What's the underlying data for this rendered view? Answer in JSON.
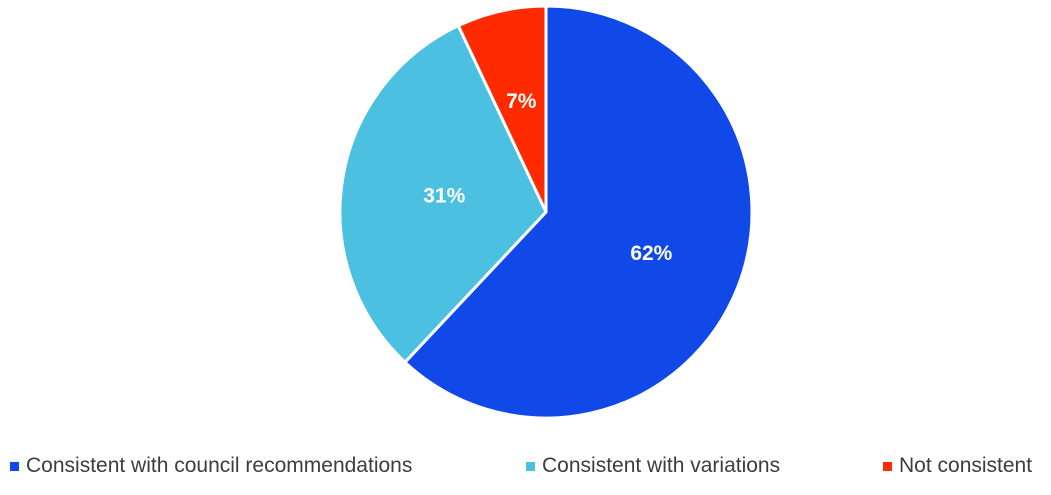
{
  "chart_data": {
    "type": "pie",
    "title": "",
    "categories": [
      "Consistent with council recommendations",
      "Consistent with variations",
      "Not consistent"
    ],
    "values": [
      62,
      31,
      7
    ],
    "data_labels": [
      "62%",
      "31%",
      "7%"
    ],
    "colors": [
      "#1049e8",
      "#4bc0e0",
      "#ff2a00"
    ],
    "legend_position": "bottom"
  }
}
